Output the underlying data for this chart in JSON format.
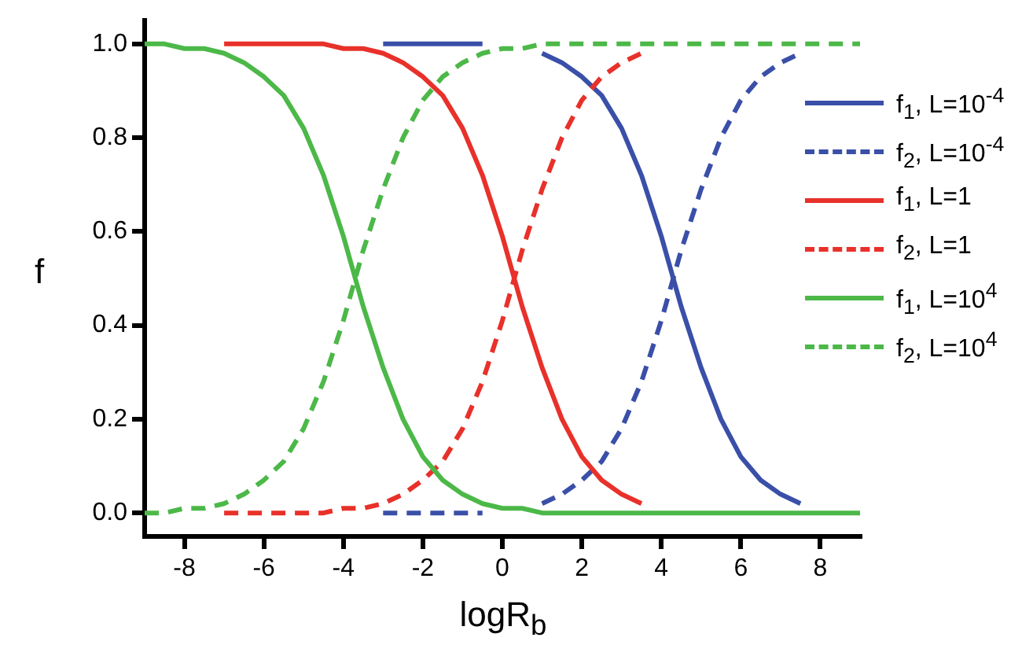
{
  "chart_data": {
    "type": "line",
    "xlabel": "logR$_{b}$",
    "ylabel": "f",
    "legend": "right",
    "grid": false,
    "xlim": [
      -9,
      9
    ],
    "xticks": [
      -8,
      -6,
      -4,
      -2,
      0,
      2,
      4,
      6,
      8
    ],
    "ylim": [
      -0.05,
      1.05
    ],
    "yticks": [
      {
        "value": 0,
        "label": "0.0"
      },
      {
        "value": 0.2,
        "label": "0.2"
      },
      {
        "value": 0.4,
        "label": "0.4"
      },
      {
        "value": 0.6,
        "label": "0.6"
      },
      {
        "value": 0.8,
        "label": "0.8"
      },
      {
        "value": 1,
        "label": "1.0"
      }
    ],
    "x": [
      -9,
      -8.5,
      -8,
      -7.5,
      -7,
      -6.5,
      -6,
      -5.5,
      -5,
      -4.5,
      -4,
      -3.5,
      -3,
      -2.5,
      -2,
      -1.5,
      -1,
      -0.5,
      0,
      0.5,
      1,
      1.5,
      2,
      2.5,
      3,
      3.5,
      4,
      4.5,
      5,
      5.5,
      6,
      6.5,
      7,
      7.5,
      8,
      8.5,
      9
    ],
    "series": [
      {
        "name": "f$_{1}$, L=10$^{-4}$",
        "color": "#3a4fa8",
        "line_style": "solid",
        "values": [
          null,
          null,
          null,
          null,
          null,
          null,
          null,
          null,
          null,
          null,
          null,
          null,
          1,
          1,
          1,
          1,
          1,
          1,
          null,
          null,
          0.98,
          0.96,
          0.93,
          0.89,
          0.82,
          0.72,
          0.59,
          0.44,
          0.31,
          0.2,
          0.12,
          0.07,
          0.04,
          0.02,
          null,
          null,
          null
        ]
      },
      {
        "name": "f$_{2}$, L=10$^{-4}$",
        "color": "#3a4fa8",
        "line_style": "dashed",
        "values": [
          null,
          null,
          null,
          null,
          null,
          null,
          null,
          null,
          null,
          null,
          null,
          null,
          0,
          0,
          0,
          0,
          0,
          0,
          null,
          null,
          0.02,
          0.04,
          0.07,
          0.11,
          0.18,
          0.28,
          0.41,
          0.56,
          0.69,
          0.8,
          0.88,
          0.93,
          0.96,
          0.98,
          null,
          null,
          null
        ]
      },
      {
        "name": "f$_{1}$, L=1",
        "color": "#e8312a",
        "line_style": "solid",
        "values": [
          null,
          null,
          null,
          null,
          1,
          1,
          1,
          1,
          1,
          1,
          0.99,
          0.99,
          0.98,
          0.96,
          0.93,
          0.89,
          0.82,
          0.72,
          0.59,
          0.44,
          0.31,
          0.2,
          0.12,
          0.07,
          0.04,
          0.02,
          null,
          null,
          null,
          null,
          null,
          null,
          null,
          null,
          null,
          null,
          null
        ]
      },
      {
        "name": "f$_{2}$, L=1",
        "color": "#e8312a",
        "line_style": "dashed",
        "values": [
          null,
          null,
          null,
          null,
          0,
          0,
          0,
          0,
          0,
          0,
          0.01,
          0.01,
          0.02,
          0.04,
          0.07,
          0.11,
          0.18,
          0.28,
          0.41,
          0.56,
          0.69,
          0.8,
          0.88,
          0.93,
          0.96,
          0.98,
          null,
          null,
          null,
          null,
          null,
          null,
          null,
          null,
          null,
          null,
          null
        ]
      },
      {
        "name": "f$_{1}$, L=10$^{4}$",
        "color": "#4cb848",
        "line_style": "solid",
        "values": [
          1,
          1,
          0.99,
          0.99,
          0.98,
          0.96,
          0.93,
          0.89,
          0.82,
          0.72,
          0.59,
          0.44,
          0.31,
          0.2,
          0.12,
          0.07,
          0.04,
          0.02,
          0.01,
          0.01,
          0,
          0,
          0,
          0,
          0,
          0,
          0,
          0,
          0,
          0,
          0,
          0,
          0,
          0,
          0,
          0,
          0
        ]
      },
      {
        "name": "f$_{2}$, L=10$^{4}$",
        "color": "#4cb848",
        "line_style": "dashed",
        "values": [
          0,
          0,
          0.01,
          0.01,
          0.02,
          0.04,
          0.07,
          0.11,
          0.18,
          0.28,
          0.41,
          0.56,
          0.69,
          0.8,
          0.88,
          0.93,
          0.96,
          0.98,
          0.99,
          0.99,
          1,
          1,
          1,
          1,
          1,
          1,
          1,
          1,
          1,
          1,
          1,
          1,
          1,
          1,
          1,
          1,
          1
        ]
      }
    ]
  }
}
